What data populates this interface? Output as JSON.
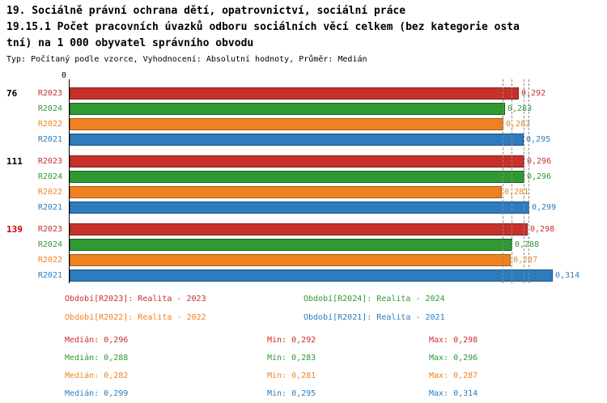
{
  "header": {
    "line1": "19. Sociálně právní ochrana dětí, opatrovnictví, sociální práce",
    "line2": "19.15.1 Počet pracovních úvazků odboru sociálních věcí celkem (bez kategorie osta",
    "line3": "tní) na 1 000 obyvatel správního obvodu",
    "meta": "Typ: Počítaný podle vzorce, Vyhodnocení: Absolutní hodnoty, Průměr: Medián"
  },
  "chart_data": {
    "type": "bar",
    "orientation": "horizontal",
    "origin_label": "0",
    "xlim": [
      0,
      0.33
    ],
    "grid": "dashed vertical lines at series medians",
    "series_order": [
      "R2023",
      "R2024",
      "R2022",
      "R2021"
    ],
    "series_colors": {
      "R2023": "#c8302a",
      "R2024": "#2f9932",
      "R2022": "#ef8220",
      "R2021": "#2d7dbe"
    },
    "series_borders": {
      "R2023": "#801f1b",
      "R2024": "#1c5e1e",
      "R2022": "#a35712",
      "R2021": "#1b4e79"
    },
    "median_gridlines": [
      0.282,
      0.288,
      0.296,
      0.299
    ],
    "groups": [
      {
        "label": "76",
        "label_color": "#000000",
        "bars": [
          {
            "series": "R2023",
            "value": 0.292,
            "display": "0,292"
          },
          {
            "series": "R2024",
            "value": 0.283,
            "display": "0,283"
          },
          {
            "series": "R2022",
            "value": 0.282,
            "display": "0,282"
          },
          {
            "series": "R2021",
            "value": 0.295,
            "display": "0,295"
          }
        ]
      },
      {
        "label": "111",
        "label_color": "#000000",
        "bars": [
          {
            "series": "R2023",
            "value": 0.296,
            "display": "0,296"
          },
          {
            "series": "R2024",
            "value": 0.296,
            "display": "0,296"
          },
          {
            "series": "R2022",
            "value": 0.281,
            "display": "0,281"
          },
          {
            "series": "R2021",
            "value": 0.299,
            "display": "0,299"
          }
        ]
      },
      {
        "label": "139",
        "label_color": "#cc0000",
        "bars": [
          {
            "series": "R2023",
            "value": 0.298,
            "display": "0,298"
          },
          {
            "series": "R2024",
            "value": 0.288,
            "display": "0,288"
          },
          {
            "series": "R2022",
            "value": 0.287,
            "display": "0,287"
          },
          {
            "series": "R2021",
            "value": 0.314,
            "display": "0,314"
          }
        ]
      }
    ]
  },
  "legend": [
    {
      "label": "Období[R2023]: Realita - 2023",
      "color": "#c8302a",
      "column": 0
    },
    {
      "label": "Období[R2024]: Realita - 2024",
      "color": "#2f9932",
      "column": 1
    },
    {
      "label": "Období[R2022]: Realita - 2022",
      "color": "#ef8220",
      "column": 0
    },
    {
      "label": "Období[R2021]: Realita - 2021",
      "color": "#2d7dbe",
      "column": 1
    }
  ],
  "stats": [
    {
      "median": "Medián: 0,296",
      "min": "Min: 0,292",
      "max": "Max: 0,298",
      "color": "#c8302a"
    },
    {
      "median": "Medián: 0,288",
      "min": "Min: 0,283",
      "max": "Max: 0,296",
      "color": "#2f9932"
    },
    {
      "median": "Medián: 0,282",
      "min": "Min: 0,281",
      "max": "Max: 0,287",
      "color": "#ef8220"
    },
    {
      "median": "Medián: 0,299",
      "min": "Min: 0,295",
      "max": "Max: 0,314",
      "color": "#2d7dbe"
    }
  ]
}
